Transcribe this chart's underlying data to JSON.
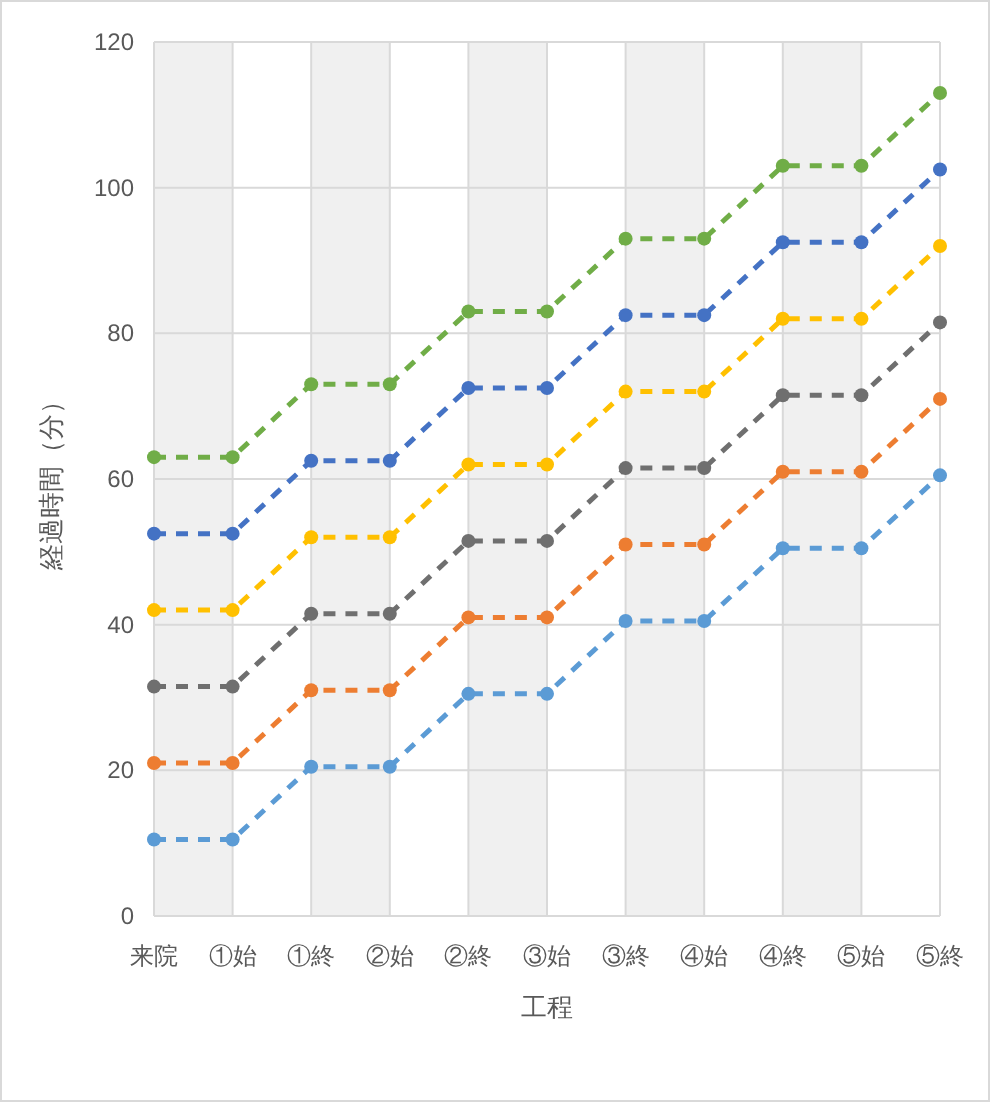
{
  "chart_data": {
    "type": "line",
    "xlabel": "工程",
    "ylabel": "経過時間（分）",
    "categories": [
      "来院",
      "①始",
      "①終",
      "②始",
      "②終",
      "③始",
      "③終",
      "④始",
      "④終",
      "⑤始",
      "⑤終"
    ],
    "series": [
      {
        "color": "#5b9bd5",
        "values": [
          10.5,
          10.5,
          20.5,
          20.5,
          30.5,
          30.5,
          40.5,
          40.5,
          50.5,
          50.5,
          60.5
        ]
      },
      {
        "color": "#ed7d31",
        "values": [
          21,
          21,
          31,
          31,
          41,
          41,
          51,
          51,
          61,
          61,
          71
        ]
      },
      {
        "color": "#6f6f6f",
        "values": [
          31.5,
          31.5,
          41.5,
          41.5,
          51.5,
          51.5,
          61.5,
          61.5,
          71.5,
          71.5,
          81.5
        ]
      },
      {
        "color": "#ffc000",
        "values": [
          42,
          42,
          52,
          52,
          62,
          62,
          72,
          72,
          82,
          82,
          92
        ]
      },
      {
        "color": "#4472c4",
        "values": [
          52.5,
          52.5,
          62.5,
          62.5,
          72.5,
          72.5,
          82.5,
          82.5,
          92.5,
          92.5,
          102.5
        ]
      },
      {
        "color": "#70ad47",
        "values": [
          63,
          63,
          73,
          73,
          83,
          83,
          93,
          93,
          103,
          103,
          113
        ]
      }
    ],
    "bands": [
      {
        "axis": "x",
        "from": "来院",
        "to": "①始",
        "color": "#f0f0f0"
      },
      {
        "axis": "x",
        "from": "①終",
        "to": "②始",
        "color": "#f0f0f0"
      },
      {
        "axis": "x",
        "from": "②終",
        "to": "③始",
        "color": "#f0f0f0"
      },
      {
        "axis": "x",
        "from": "③終",
        "to": "④始",
        "color": "#f0f0f0"
      },
      {
        "axis": "x",
        "from": "④終",
        "to": "⑤始",
        "color": "#f0f0f0"
      }
    ],
    "ylim": [
      0,
      120
    ],
    "yticks": [
      0,
      20,
      40,
      60,
      80,
      100,
      120
    ],
    "grid": true,
    "marker": "circle",
    "line_style": "dashed"
  }
}
